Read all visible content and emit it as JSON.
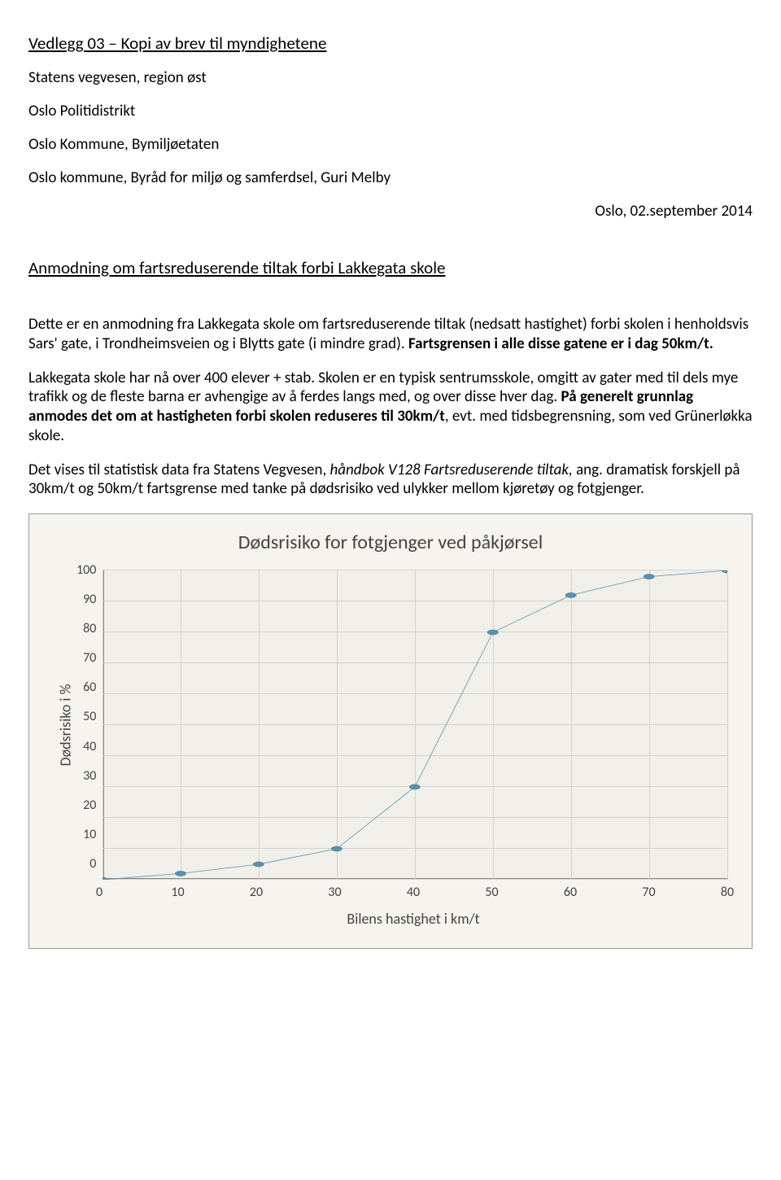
{
  "document": {
    "title": "Vedlegg 03 – Kopi av brev til myndighetene",
    "addressees": [
      "Statens vegvesen, region øst",
      "Oslo Politidistrikt",
      "Oslo Kommune, Bymiljøetaten",
      "Oslo kommune, Byråd for miljø og samferdsel, Guri Melby"
    ],
    "date": "Oslo, 02.september 2014",
    "subject": "Anmodning om fartsreduserende tiltak forbi Lakkegata skole",
    "para1_pre": "Dette er en anmodning fra Lakkegata skole om fartsreduserende tiltak (nedsatt hastighet) forbi skolen i henholdsvis Sars' gate, i Trondheimsveien og i Blytts gate (i mindre grad). ",
    "para1_bold": "Fartsgrensen i alle disse gatene er i dag 50km/t.",
    "para2_pre": "Lakkegata skole har nå over 400 elever + stab. Skolen er en typisk sentrumsskole, omgitt av gater med til dels mye trafikk og de fleste barna er avhengige av å ferdes langs med, og over disse hver dag. ",
    "para2_bold": "På generelt grunnlag anmodes det om at hastigheten forbi skolen reduseres til 30km/t",
    "para2_post": ", evt. med tidsbegrensning, som ved Grünerløkka skole.",
    "para3_pre": "Det vises til statistisk data fra Statens Vegvesen, ",
    "para3_italic": "håndbok V128 Fartsreduserende tiltak, ",
    "para3_post": "ang. dramatisk forskjell på 30km/t og 50km/t fartsgrense med tanke på dødsrisiko ved ulykker mellom kjøretøy og fotgjenger."
  },
  "chart": {
    "type": "line",
    "title": "Dødsrisiko for fotgjenger ved påkjørsel",
    "ylabel": "Dødsrisiko i %",
    "xlabel": "Bilens hastighet i km/t",
    "xlim": [
      0,
      80
    ],
    "ylim": [
      0,
      100
    ],
    "xtick_step": 10,
    "ytick_step": 10,
    "xticks": [
      0,
      10,
      20,
      30,
      40,
      50,
      60,
      70,
      80
    ],
    "yticks": [
      100,
      90,
      80,
      70,
      60,
      50,
      40,
      30,
      20,
      10,
      0
    ],
    "line_color": "#5b8fab",
    "marker_color": "#5b8fab",
    "marker_size": 5,
    "line_width": 3,
    "background_color": "#f0efe9",
    "grid_color": "#d4d3cc",
    "panel_bg": "#f5f4ef",
    "title_fontsize": 24,
    "label_fontsize": 18,
    "tick_fontsize": 16,
    "data": [
      {
        "x": 0,
        "y": 0
      },
      {
        "x": 10,
        "y": 2
      },
      {
        "x": 20,
        "y": 5
      },
      {
        "x": 30,
        "y": 10
      },
      {
        "x": 40,
        "y": 30
      },
      {
        "x": 50,
        "y": 80
      },
      {
        "x": 60,
        "y": 92
      },
      {
        "x": 70,
        "y": 98
      },
      {
        "x": 80,
        "y": 100
      }
    ]
  }
}
